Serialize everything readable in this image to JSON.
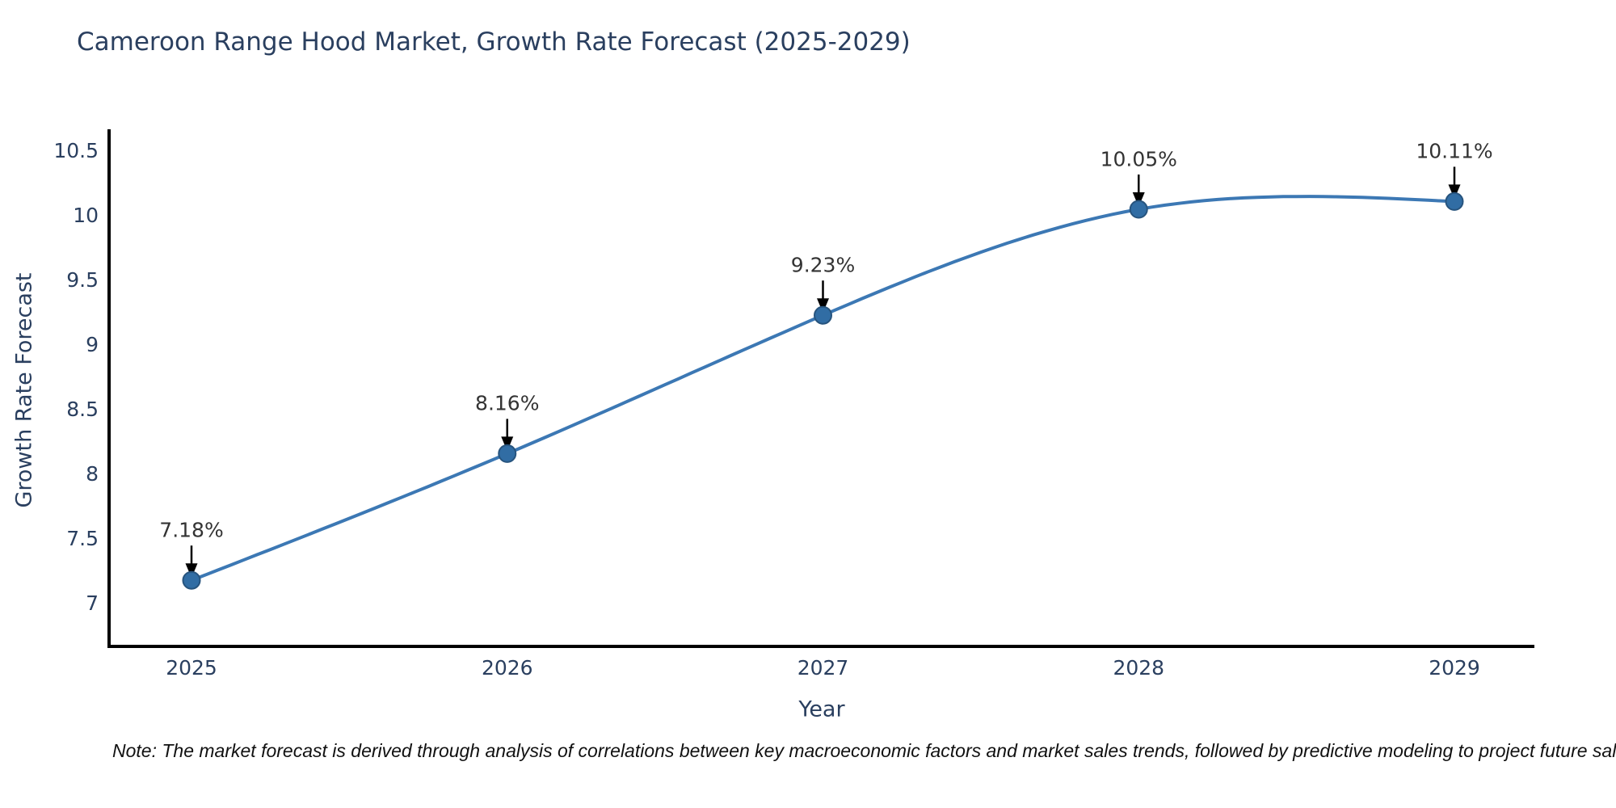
{
  "chart_data": {
    "type": "line",
    "title": "Cameroon Range Hood Market, Growth Rate Forecast (2025-2029)",
    "xlabel": "Year",
    "ylabel": "Growth Rate Forecast",
    "x": [
      2025,
      2026,
      2027,
      2028,
      2029
    ],
    "xtick_labels": [
      "2025",
      "2026",
      "2027",
      "2028",
      "2029"
    ],
    "series": [
      {
        "name": "Growth Rate Forecast",
        "values": [
          7.18,
          8.16,
          9.23,
          10.05,
          10.11
        ]
      }
    ],
    "point_labels": [
      "7.18%",
      "8.16%",
      "9.23%",
      "10.05%",
      "10.11%"
    ],
    "yticks": [
      7,
      7.5,
      8,
      8.5,
      9,
      9.5,
      10,
      10.5
    ],
    "ytick_labels": [
      "7",
      "7.5",
      "8",
      "8.5",
      "9",
      "9.5",
      "10",
      "10.5"
    ],
    "ylim": [
      6.67,
      10.67
    ],
    "xlim": [
      2024.74,
      2029.25
    ],
    "grid": false,
    "legend": false,
    "interpolation": "cubic-spline",
    "annotation_style": "value label with down arrow to marker",
    "colors": {
      "line": "#3c78b4",
      "marker": "#316da4",
      "marker_edge": "#27547e",
      "axis": "#000000",
      "text": "#2a3f5f",
      "annotation_text": "#333333",
      "annotation_arrow": "#000000",
      "background": "#ffffff"
    }
  },
  "note": {
    "text": "Note: The market forecast is derived through analysis of correlations between key macroeconomic factors and market sales trends, followed by predictive modeling to project future sal"
  }
}
